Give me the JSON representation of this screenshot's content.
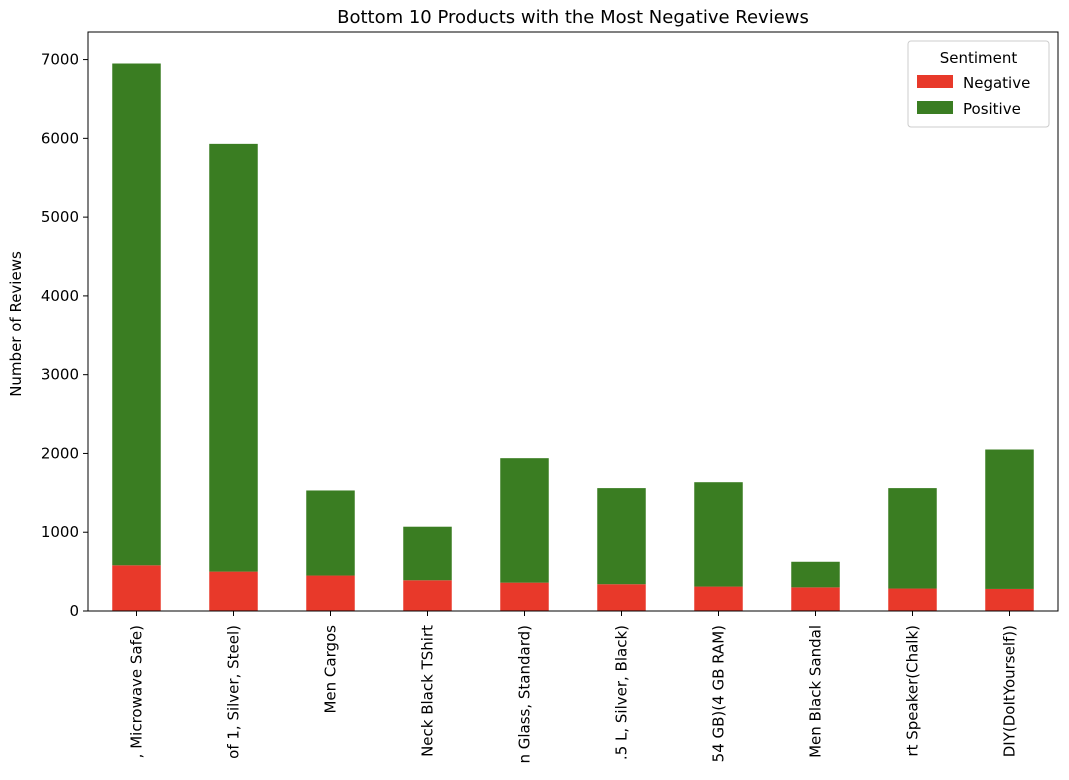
{
  "chart_data": {
    "type": "bar",
    "stacked": true,
    "title": "Bottom 10 Products with the Most Negative Reviews",
    "xlabel": "",
    "ylabel": "Number of Reviews",
    "ylim": [
      0,
      7350
    ],
    "yticks": [
      0,
      1000,
      2000,
      3000,
      4000,
      5000,
      6000,
      7000
    ],
    "grid": false,
    "legend": {
      "title": "Sentiment",
      "placement": "top-right"
    },
    "categories": [
      ", Microwave Safe)",
      "of 1, Silver, Steel)",
      "Men Cargos",
      "Neck Black TShirt",
      "n Glass, Standard)",
      ".5 L, Silver, Black)",
      "54 GB)(4 GB RAM)",
      "Men Black Sandal",
      "rt Speaker(Chalk)",
      "DIY(DoItYourself))"
    ],
    "series": [
      {
        "name": "Negative",
        "color": "#e8392a",
        "values": [
          580,
          500,
          450,
          390,
          360,
          340,
          310,
          300,
          285,
          280
        ]
      },
      {
        "name": "Positive",
        "color": "#3a7d22",
        "values": [
          6370,
          5430,
          1080,
          680,
          1580,
          1220,
          1325,
          325,
          1275,
          1770
        ]
      }
    ]
  }
}
